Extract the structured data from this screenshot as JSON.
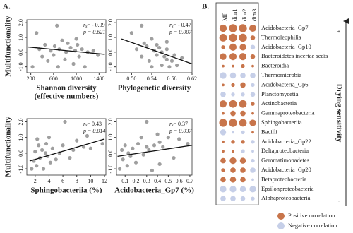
{
  "chart_data": [
    {
      "type": "scatter",
      "label": "A.",
      "ylabel": "Multifunctionality",
      "xlabel": [
        "Shannon diversity",
        "(effective numbers)"
      ],
      "annotation": {
        "r": "r",
        "sub": "s",
        "value": "= - 0.09",
        "p": "p = 0.621"
      },
      "xlim": [
        130,
        1520
      ],
      "xticks": [
        200,
        600,
        1000,
        1400
      ],
      "ylim": [
        -1.4,
        2.2
      ],
      "yticks": [
        {
          "value": -1,
          "label": "-1.0"
        },
        {
          "value": 0,
          "label": "0.0"
        },
        {
          "value": 1,
          "label": "1.0"
        },
        {
          "value": 2,
          "label": "2.0"
        }
      ],
      "color": "#7f7f7f",
      "x": [
        300,
        350,
        400,
        450,
        500,
        550,
        600,
        620,
        680,
        700,
        750,
        800,
        820,
        850,
        900,
        950,
        980,
        1000,
        1050,
        1100,
        1150,
        1200,
        1300,
        1380,
        230,
        660,
        1020
      ],
      "y": [
        1.3,
        0.2,
        -0.3,
        0.5,
        -0.6,
        0.1,
        -0.2,
        0.4,
        -1.0,
        0.2,
        0.8,
        -0.5,
        0.0,
        0.6,
        0.3,
        -0.8,
        0.1,
        0.9,
        -0.3,
        0.2,
        -1.0,
        0.0,
        0.1,
        -0.2,
        -1.0,
        1.8,
        0.5
      ],
      "trend": {
        "x": [
          150,
          1500
        ],
        "y": [
          0.35,
          -0.15
        ]
      }
    },
    {
      "type": "scatter",
      "xlabel": [
        "Phylogenetic diversity"
      ],
      "annotation": {
        "r": "r",
        "sub": "s",
        "value": "= - 0.47",
        "p": "p = 0.007"
      },
      "xlim": [
        0.47,
        0.62
      ],
      "xticks": [
        {
          "value": 0.5,
          "label": "0.50"
        },
        0.54,
        0.58,
        0.62
      ],
      "ylim": [
        -1.4,
        2.2
      ],
      "yticks": [
        {
          "value": -1,
          "label": "-1.0"
        },
        {
          "value": 0,
          "label": "0.0"
        },
        {
          "value": 1,
          "label": "1.0"
        },
        {
          "value": 2,
          "label": "2.0"
        }
      ],
      "color": "#7f7f7f",
      "x": [
        0.5,
        0.51,
        0.52,
        0.525,
        0.53,
        0.535,
        0.54,
        0.545,
        0.55,
        0.55,
        0.555,
        0.56,
        0.56,
        0.565,
        0.57,
        0.57,
        0.575,
        0.58,
        0.585,
        0.59,
        0.52,
        0.54,
        0.6,
        0.57
      ],
      "y": [
        1.3,
        0.2,
        -0.3,
        0.6,
        0.4,
        -0.6,
        0.9,
        0.1,
        -0.2,
        0.5,
        0.3,
        -0.9,
        0.0,
        -0.3,
        0.2,
        -0.5,
        -1.0,
        -0.6,
        -0.2,
        -0.9,
        1.8,
        -1.0,
        -0.4,
        0.7
      ],
      "trend": {
        "x": [
          0.48,
          0.62
        ],
        "y": [
          0.9,
          -0.8
        ]
      }
    },
    {
      "type": "scatter",
      "ylabel": "Multifunctionality",
      "xlabel": [
        "Sphingobacteriia (%)"
      ],
      "annotation": {
        "r": "r",
        "sub": "s",
        "value": "= 0.43",
        "p": "p = 0.014"
      },
      "xlim": [
        0.8,
        12.2
      ],
      "xticks": [
        2,
        4,
        6,
        8,
        10,
        12
      ],
      "ylim": [
        -1.4,
        2.2
      ],
      "yticks": [
        {
          "value": -1,
          "label": "-1.0"
        },
        {
          "value": 0,
          "label": "0.0"
        },
        {
          "value": 1,
          "label": "1.0"
        },
        {
          "value": 2,
          "label": "2.0"
        }
      ],
      "color": "#7f7f7f",
      "x": [
        1.5,
        1.8,
        2.0,
        2.2,
        2.5,
        2.7,
        3.0,
        3.2,
        3.5,
        3.6,
        3.8,
        4.0,
        4.2,
        4.5,
        5.0,
        5.5,
        6.0,
        6.3,
        7.0,
        7.5,
        8.0,
        9.0,
        9.5,
        10.0,
        11.7,
        2.3
      ],
      "y": [
        -1.0,
        -0.5,
        0.1,
        -0.8,
        0.5,
        -0.3,
        0.2,
        -1.0,
        0.0,
        0.6,
        -0.2,
        1.0,
        -0.6,
        0.3,
        -0.4,
        0.0,
        0.5,
        2.0,
        -0.3,
        0.2,
        0.8,
        0.4,
        1.1,
        0.3,
        0.6,
        0.9
      ],
      "trend": {
        "x": [
          1.2,
          12
        ],
        "y": [
          -0.5,
          0.9
        ]
      }
    },
    {
      "type": "scatter",
      "xlabel": [
        "Acidobacteria_Gp7 (%)"
      ],
      "annotation": {
        "r": "r",
        "sub": "s",
        "value": "= 0.37",
        "p": "p = 0.037"
      },
      "xlim": [
        0.02,
        0.72
      ],
      "xticks": [
        0.1,
        0.2,
        0.3,
        0.4,
        0.5,
        0.6,
        0.7
      ],
      "ylim": [
        -1.4,
        2.2
      ],
      "yticks": [
        {
          "value": -1,
          "label": "-1.0"
        },
        {
          "value": 0,
          "label": "0.0"
        },
        {
          "value": 1,
          "label": "1.0"
        },
        {
          "value": 2,
          "label": "2.0"
        }
      ],
      "color": "#7f7f7f",
      "x": [
        0.05,
        0.07,
        0.08,
        0.1,
        0.12,
        0.13,
        0.15,
        0.17,
        0.2,
        0.22,
        0.25,
        0.27,
        0.3,
        0.32,
        0.35,
        0.37,
        0.4,
        0.42,
        0.45,
        0.5,
        0.55,
        0.6,
        0.68,
        0.3,
        0.42
      ],
      "y": [
        -1.0,
        0.2,
        -0.4,
        0.5,
        -0.8,
        0.0,
        -0.2,
        0.3,
        -0.6,
        0.6,
        1.0,
        -0.1,
        0.4,
        0.2,
        -1.1,
        0.5,
        1.2,
        0.7,
        0.4,
        1.0,
        -0.3,
        0.9,
        0.6,
        2.0,
        -0.7
      ],
      "trend": {
        "x": [
          0.03,
          0.72
        ],
        "y": [
          -0.2,
          0.5
        ]
      }
    },
    {
      "type": "dot_matrix",
      "label": "B.",
      "columns": [
        "MF",
        "dim1",
        "dim2",
        "dim3"
      ],
      "rows": [
        "Acidobacteria_Gp7",
        "Thermoleophilia",
        "Acidobacteria_Gp10",
        "Bacteroidetes incertae sedis",
        "Bacteroidia",
        "Thermomicrobia",
        "Acidobacteria_Gp6",
        "Planctomycetia",
        "Actinobacteria",
        "Gammaproteobacteria",
        "Sphingobacteriia",
        "Bacilli",
        "Acidobacteria_Gp22",
        "Deltaproteobacteria",
        "Gemmatimonadetes",
        "Acidobacteria_Gp20",
        "Betaproteobacteria",
        "Epsilonproteobacteria",
        "Alphaproteobacteria"
      ],
      "values": [
        [
          0.37,
          0.45,
          0.45,
          0.35
        ],
        [
          0.4,
          0.45,
          0.45,
          0.15
        ],
        [
          0.1,
          0.35,
          0.3,
          -0.15
        ],
        [
          0.3,
          0.35,
          0.35,
          0.15
        ],
        [
          0.05,
          0.05,
          0.1,
          0.05
        ],
        [
          -0.3,
          -0.25,
          -0.2,
          -0.2
        ],
        [
          0.05,
          0.1,
          0.2,
          -0.1
        ],
        [
          -0.2,
          -0.1,
          -0.1,
          -0.15
        ],
        [
          0.35,
          0.4,
          0.4,
          0.1
        ],
        [
          0.05,
          0.2,
          0.2,
          0.05
        ],
        [
          0.43,
          0.45,
          0.4,
          0.3
        ],
        [
          -0.25,
          -0.05,
          -0.1,
          0.05
        ],
        [
          0.05,
          0.1,
          0.1,
          -0.1
        ],
        [
          0.05,
          0.05,
          -0.1,
          -0.05
        ],
        [
          0.2,
          0.3,
          0.25,
          -0.1
        ],
        [
          0.1,
          0.2,
          0.2,
          -0.2
        ],
        [
          0.2,
          0.25,
          0.2,
          -0.05
        ],
        [
          -0.3,
          -0.3,
          -0.25,
          -0.3
        ],
        [
          -0.2,
          -0.2,
          -0.15,
          -0.1
        ]
      ],
      "legend": [
        {
          "name": "Positive correlation",
          "color": "#c8754b"
        },
        {
          "name": "Negative correlation",
          "color": "#c6cfe8"
        }
      ],
      "axis_label": "Drying sensitivity",
      "axis_top": "+",
      "axis_bottom": "-"
    }
  ]
}
